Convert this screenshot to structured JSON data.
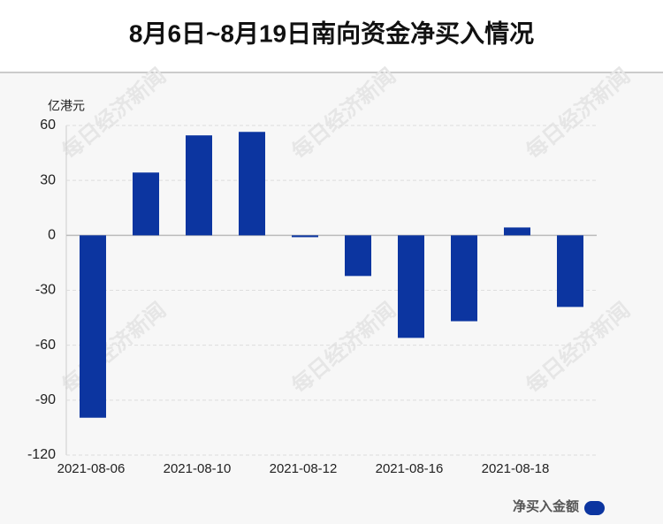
{
  "chart_data": {
    "type": "bar",
    "title": "8月6日~8月19日南向资金净买入情况",
    "y_unit": "亿港元",
    "watermark": "每日经济新闻",
    "categories": [
      "2021-08-06",
      null,
      "2021-08-10",
      null,
      "2021-08-12",
      null,
      "2021-08-16",
      null,
      "2021-08-18",
      null
    ],
    "series": [
      {
        "name": "净买入金额",
        "color": "#0c35a0",
        "values": [
          -99.6,
          34.3,
          54.6,
          56.5,
          -1,
          -22.2,
          -56,
          -46.9,
          4.3,
          -39.1
        ]
      }
    ],
    "ylim": [
      -120,
      60
    ],
    "yticks": [
      -120,
      -90,
      -60,
      -30,
      0,
      30,
      60
    ],
    "grid": true,
    "legend": "bottom-right"
  }
}
